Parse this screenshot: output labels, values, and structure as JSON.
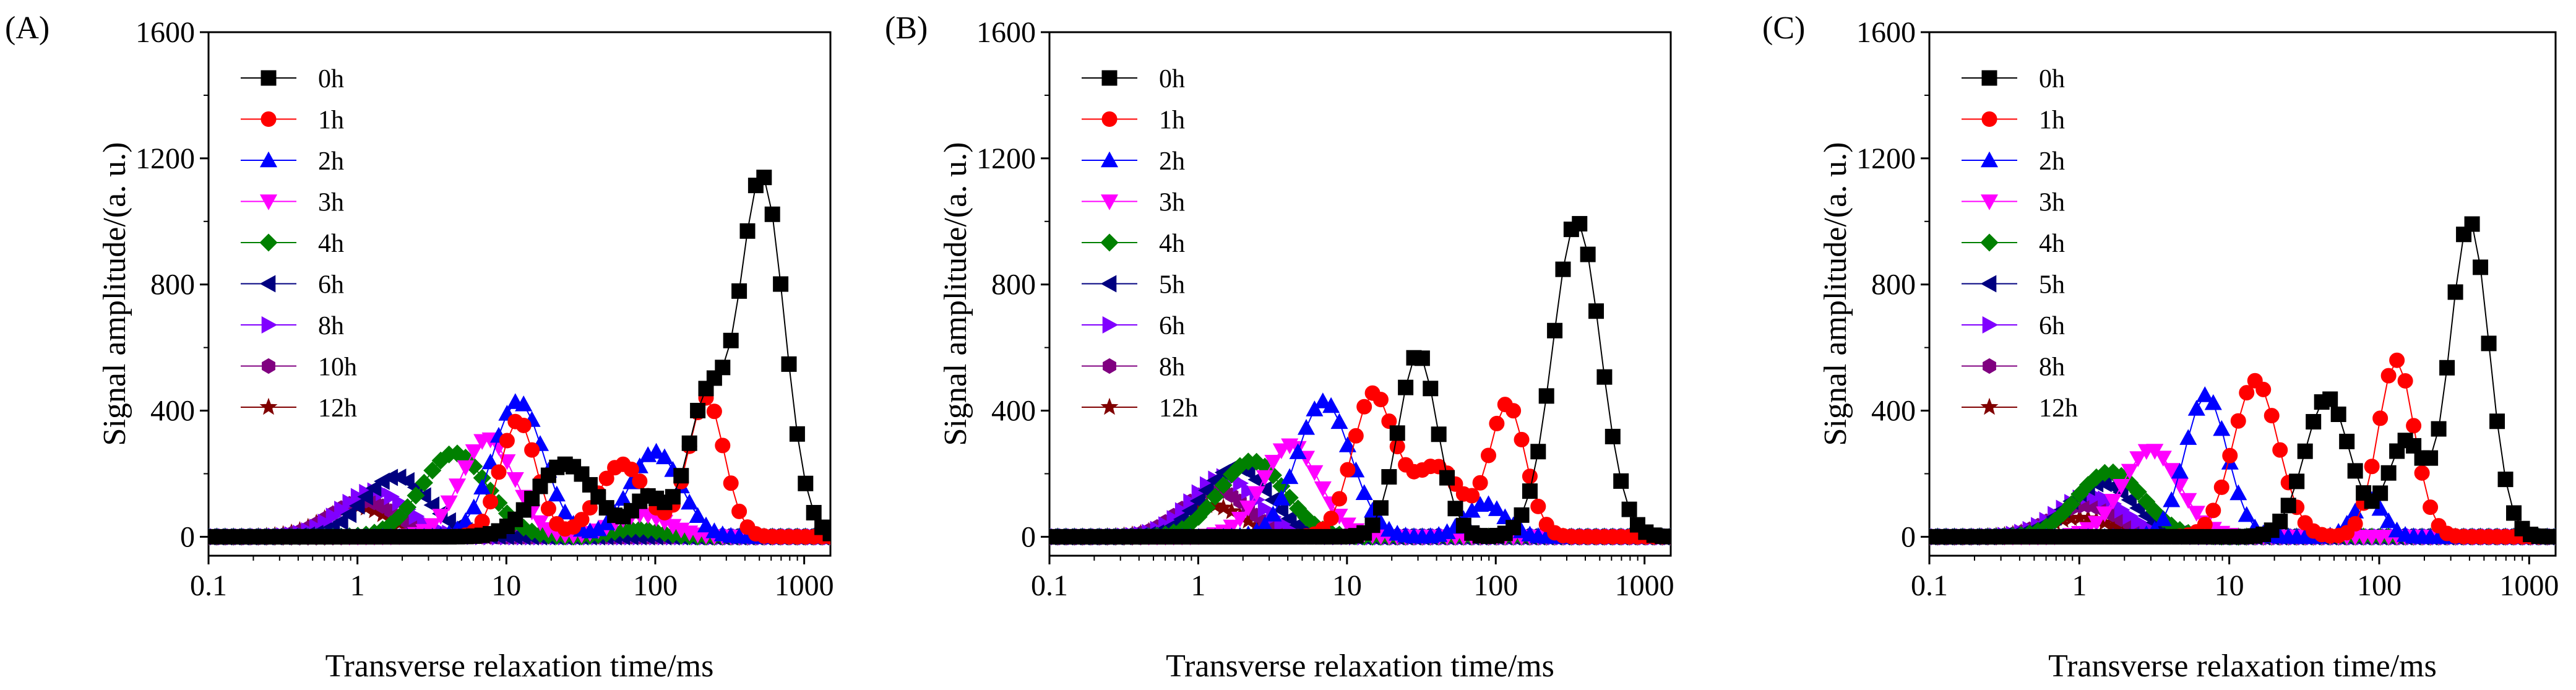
{
  "chart_data": [
    {
      "type": "line",
      "panel_label": "(A)",
      "xlabel": "Transverse relaxation time/ms",
      "ylabel": "Signal amplitude/(a. u.)",
      "x_scale": "log",
      "xlim": [
        0.1,
        1500
      ],
      "ylim": [
        -60,
        1600
      ],
      "x_ticks": [
        0.1,
        1,
        10,
        100,
        1000
      ],
      "x_tick_labels": [
        "0.1",
        "1",
        "10",
        "100",
        "1000"
      ],
      "y_ticks": [
        0,
        400,
        800,
        1200,
        1600
      ],
      "y_tick_labels": [
        "0",
        "400",
        "800",
        "1200",
        "1600"
      ],
      "legend_position": "top-left",
      "series": [
        {
          "name": "0h",
          "color": "#000000",
          "marker": "square",
          "peaks": [
            [
              25,
              0.2,
              230
            ],
            [
              90,
              0.1,
              120
            ],
            [
              220,
              0.13,
              420
            ],
            [
              520,
              0.15,
              1140
            ]
          ]
        },
        {
          "name": "1h",
          "color": "#ff0000",
          "marker": "circle",
          "peaks": [
            [
              12,
              0.12,
              370
            ],
            [
              60,
              0.16,
              230
            ],
            [
              220,
              0.12,
              440
            ]
          ]
        },
        {
          "name": "2h",
          "color": "#0000ff",
          "marker": "triangle-up",
          "peaks": [
            [
              12,
              0.17,
              430
            ],
            [
              100,
              0.17,
              270
            ]
          ]
        },
        {
          "name": "3h",
          "color": "#ff00ff",
          "marker": "triangle-down",
          "peaks": [
            [
              7.5,
              0.18,
              310
            ],
            [
              80,
              0.18,
              70
            ]
          ]
        },
        {
          "name": "4h",
          "color": "#008000",
          "marker": "diamond",
          "peaks": [
            [
              4.5,
              0.22,
              265
            ],
            [
              75,
              0.15,
              25
            ]
          ]
        },
        {
          "name": "6h",
          "color": "#000080",
          "marker": "triangle-left",
          "peaks": [
            [
              1.8,
              0.22,
              190
            ]
          ]
        },
        {
          "name": "8h",
          "color": "#8000ff",
          "marker": "triangle-right",
          "peaks": [
            [
              1.3,
              0.22,
              145
            ]
          ]
        },
        {
          "name": "10h",
          "color": "#800080",
          "marker": "hexagon",
          "peaks": [
            [
              1.1,
              0.22,
              115
            ]
          ]
        },
        {
          "name": "12h",
          "color": "#800000",
          "marker": "star",
          "peaks": [
            [
              1.0,
              0.22,
              95
            ]
          ]
        }
      ]
    },
    {
      "type": "line",
      "panel_label": "(B)",
      "xlabel": "Transverse relaxation time/ms",
      "ylabel": "Signal amplitude/(a. u.)",
      "x_scale": "log",
      "xlim": [
        0.1,
        1500
      ],
      "ylim": [
        -60,
        1600
      ],
      "x_ticks": [
        0.1,
        1,
        10,
        100,
        1000
      ],
      "x_tick_labels": [
        "0.1",
        "1",
        "10",
        "100",
        "1000"
      ],
      "y_ticks": [
        0,
        400,
        800,
        1200,
        1600
      ],
      "y_tick_labels": [
        "0",
        "400",
        "800",
        "1200",
        "1600"
      ],
      "legend_position": "top-left",
      "series": [
        {
          "name": "0h",
          "color": "#000000",
          "marker": "square",
          "peaks": [
            [
              30,
              0.13,
              580
            ],
            [
              350,
              0.16,
              1000
            ]
          ]
        },
        {
          "name": "1h",
          "color": "#ff0000",
          "marker": "circle",
          "peaks": [
            [
              15,
              0.14,
              450
            ],
            [
              40,
              0.16,
              220
            ],
            [
              120,
              0.12,
              420
            ]
          ]
        },
        {
          "name": "2h",
          "color": "#0000ff",
          "marker": "triangle-up",
          "peaks": [
            [
              7,
              0.18,
              430
            ],
            [
              85,
              0.13,
              105
            ]
          ]
        },
        {
          "name": "3h",
          "color": "#ff00ff",
          "marker": "triangle-down",
          "peaks": [
            [
              4.2,
              0.19,
              290
            ]
          ]
        },
        {
          "name": "4h",
          "color": "#008000",
          "marker": "diamond",
          "peaks": [
            [
              2.3,
              0.22,
              240
            ]
          ]
        },
        {
          "name": "5h",
          "color": "#000080",
          "marker": "triangle-left",
          "peaks": [
            [
              1.8,
              0.22,
              220
            ]
          ]
        },
        {
          "name": "6h",
          "color": "#8000ff",
          "marker": "triangle-right",
          "peaks": [
            [
              1.5,
              0.22,
              190
            ]
          ]
        },
        {
          "name": "8h",
          "color": "#800080",
          "marker": "hexagon",
          "peaks": [
            [
              1.3,
              0.22,
              150
            ]
          ]
        },
        {
          "name": "12h",
          "color": "#800000",
          "marker": "star",
          "peaks": [
            [
              1.2,
              0.22,
              100
            ]
          ]
        }
      ]
    },
    {
      "type": "line",
      "panel_label": "(C)",
      "xlabel": "Transverse relaxation time/ms",
      "ylabel": "Signal amplitude/(a. u.)",
      "x_scale": "log",
      "xlim": [
        0.1,
        1500
      ],
      "ylim": [
        -60,
        1600
      ],
      "x_ticks": [
        0.1,
        1,
        10,
        100,
        1000
      ],
      "x_tick_labels": [
        "0.1",
        "1",
        "10",
        "100",
        "1000"
      ],
      "y_ticks": [
        0,
        400,
        800,
        1200,
        1600
      ],
      "y_tick_labels": [
        "0",
        "400",
        "800",
        "1200",
        "1600"
      ],
      "legend_position": "top-left",
      "series": [
        {
          "name": "0h",
          "color": "#000000",
          "marker": "square",
          "peaks": [
            [
              45,
              0.15,
              440
            ],
            [
              150,
              0.12,
              300
            ],
            [
              400,
              0.13,
              1000
            ]
          ]
        },
        {
          "name": "1h",
          "color": "#ff0000",
          "marker": "circle",
          "peaks": [
            [
              15,
              0.15,
              495
            ],
            [
              130,
              0.12,
              560
            ]
          ]
        },
        {
          "name": "2h",
          "color": "#0000ff",
          "marker": "triangle-up",
          "peaks": [
            [
              7,
              0.14,
              450
            ],
            [
              85,
              0.1,
              120
            ]
          ]
        },
        {
          "name": "3h",
          "color": "#ff00ff",
          "marker": "triangle-down",
          "peaks": [
            [
              3,
              0.19,
              275
            ]
          ]
        },
        {
          "name": "4h",
          "color": "#008000",
          "marker": "diamond",
          "peaks": [
            [
              1.6,
              0.22,
              205
            ]
          ]
        },
        {
          "name": "5h",
          "color": "#000080",
          "marker": "triangle-left",
          "peaks": [
            [
              1.4,
              0.22,
              170
            ]
          ]
        },
        {
          "name": "6h",
          "color": "#8000ff",
          "marker": "triangle-right",
          "peaks": [
            [
              1.2,
              0.22,
              130
            ]
          ]
        },
        {
          "name": "8h",
          "color": "#800080",
          "marker": "hexagon",
          "peaks": [
            [
              1.1,
              0.22,
              100
            ]
          ]
        },
        {
          "name": "12h",
          "color": "#800000",
          "marker": "star",
          "peaks": [
            [
              1.0,
              0.22,
              60
            ]
          ]
        }
      ]
    }
  ]
}
